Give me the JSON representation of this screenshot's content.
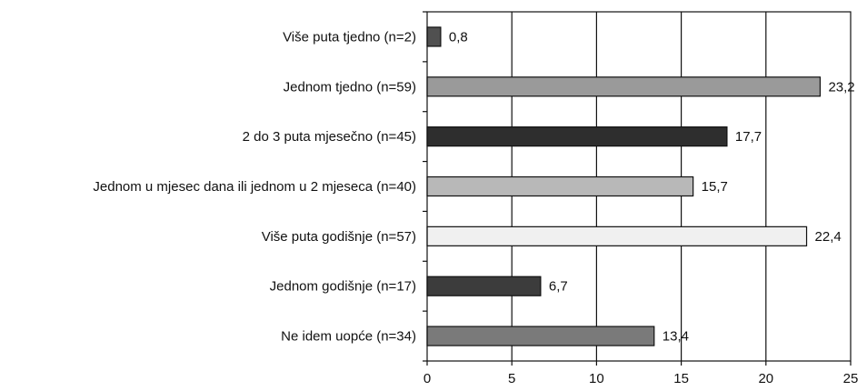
{
  "chart_data": {
    "type": "bar",
    "orientation": "horizontal",
    "title": "",
    "xlabel": "",
    "ylabel": "",
    "xlim": [
      0,
      25
    ],
    "xticks": [
      "0",
      "5",
      "10",
      "15",
      "20",
      "25"
    ],
    "grid": "vertical",
    "categories": [
      "Više puta tjedno (n=2)",
      "Jednom tjedno (n=59)",
      "2 do 3 puta mjesečno (n=45)",
      "Jednom u mjesec dana ili jednom u 2 mjeseca (n=40)",
      "Više puta godišnje (n=57)",
      "Jednom godišnje (n=17)",
      "Ne idem uopće (n=34)"
    ],
    "values": [
      0.8,
      23.2,
      17.7,
      15.7,
      22.4,
      6.7,
      13.4
    ],
    "value_labels": [
      "0,8",
      "23,2",
      "17,7",
      "15,7",
      "22,4",
      "6,7",
      "13,4"
    ],
    "bar_colors": [
      "#505050",
      "#9a9a9a",
      "#2e2e2e",
      "#b8b8b8",
      "#f0f0f0",
      "#3c3c3c",
      "#7a7a7a"
    ]
  }
}
